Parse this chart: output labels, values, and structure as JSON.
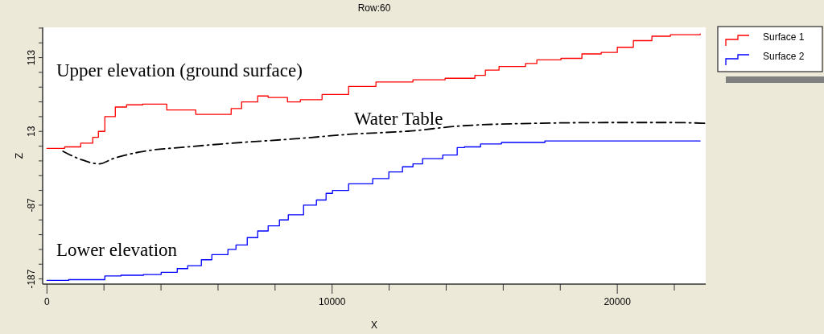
{
  "chart_data": {
    "type": "step",
    "title": "Row:60",
    "xlabel": "X",
    "ylabel": "Z",
    "xlim": [
      -150,
      23100
    ],
    "ylim": [
      -194,
      154
    ],
    "xticks": [
      0,
      {
        "value": 2000,
        "label": null
      },
      {
        "value": 4000,
        "label": null
      },
      {
        "value": 6000,
        "label": null
      },
      {
        "value": 8000,
        "label": null
      },
      10000,
      {
        "value": 12000,
        "label": null
      },
      {
        "value": 14000,
        "label": null
      },
      {
        "value": 16000,
        "label": null
      },
      {
        "value": 18000,
        "label": null
      },
      20000,
      {
        "value": 22000,
        "label": null
      }
    ],
    "yticks": [
      -187,
      {
        "value": -167,
        "label": null
      },
      {
        "value": -147,
        "label": null
      },
      {
        "value": -127,
        "label": null
      },
      {
        "value": -107,
        "label": null
      },
      -87,
      {
        "value": -67,
        "label": null
      },
      {
        "value": -47,
        "label": null
      },
      {
        "value": -27,
        "label": null
      },
      {
        "value": -7,
        "label": null
      },
      13,
      {
        "value": 33,
        "label": null
      },
      {
        "value": 53,
        "label": null
      },
      {
        "value": 73,
        "label": null
      },
      {
        "value": 93,
        "label": null
      },
      113,
      {
        "value": 133,
        "label": null
      },
      {
        "value": 153,
        "label": null
      }
    ],
    "grid": false,
    "legend": "top right",
    "series": [
      {
        "name": "Surface 1",
        "color": "#ff0000",
        "x": [
          0,
          620,
          1185,
          1608,
          1805,
          2031,
          2398,
          2793,
          3357,
          4203,
          5219,
          5896,
          6460,
          6827,
          7391,
          7757,
          8434,
          8886,
          9647,
          10578,
          11537,
          12835,
          13963,
          15007,
          15374,
          15853,
          16784,
          17179,
          18025,
          18759,
          19436,
          20000,
          20564,
          21213,
          21862,
          22906
        ],
        "values": [
          -10,
          -8,
          -3,
          5,
          13,
          33,
          46,
          49,
          50,
          42,
          36,
          36,
          44,
          53,
          61,
          59,
          53,
          56,
          63,
          74,
          80,
          83,
          85,
          89,
          96,
          101,
          105,
          110,
          112,
          118,
          120,
          127,
          136,
          142,
          144,
          145
        ]
      },
      {
        "name": "Surface 2",
        "color": "#0000ff",
        "x": [
          0,
          762,
          2031,
          2595,
          3385,
          4006,
          4570,
          4937,
          5416,
          5783,
          6347,
          6629,
          7024,
          7391,
          7757,
          8152,
          8463,
          8999,
          9450,
          9788,
          10014,
          10578,
          11425,
          11989,
          12468,
          12835,
          13173,
          13879,
          14386,
          14640,
          15205,
          15938,
          17461,
          22906
        ],
        "values": [
          -189,
          -188,
          -183,
          -182,
          -181,
          -178,
          -173,
          -169,
          -161,
          -154,
          -147,
          -141,
          -131,
          -122,
          -115,
          -107,
          -100,
          -87,
          -80,
          -71,
          -67,
          -58,
          -51,
          -42,
          -35,
          -31,
          -24,
          -19,
          -9,
          -8,
          -4,
          -2,
          0,
          0
        ]
      },
      {
        "color": "#000000",
        "type": "line",
        "line_style": "dashed",
        "x": [
          564,
          1185,
          1833,
          2313,
          3244,
          4937,
          6827,
          8716,
          10578,
          12891,
          14358,
          17179,
          20000,
          21862,
          23100
        ],
        "values": [
          -14,
          -25,
          -31,
          -24,
          -15,
          -8,
          -2,
          3,
          9,
          14,
          20,
          24,
          25,
          25,
          24
        ]
      }
    ],
    "annotations": [
      "Upper elevation (ground surface)",
      "Water Table",
      "Lower elevation"
    ]
  }
}
